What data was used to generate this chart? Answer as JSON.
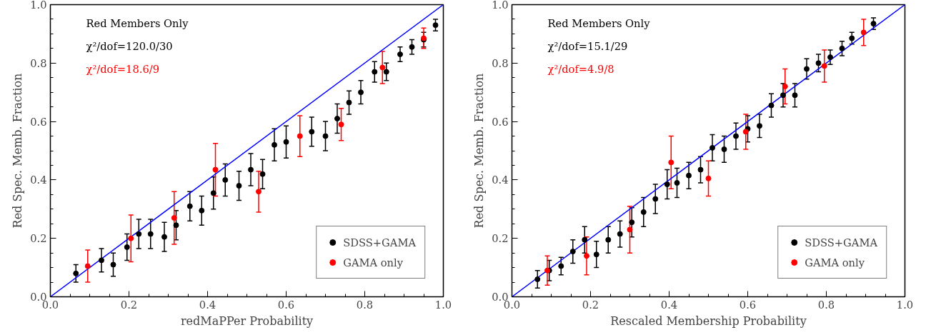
{
  "chart_data": [
    {
      "type": "scatter",
      "xlabel": "redMaPPer Probability",
      "ylabel": "Red Spec. Memb. Fraction",
      "xlim": [
        0,
        1
      ],
      "ylim": [
        0,
        1
      ],
      "xticks": [
        {
          "value": 0,
          "label": "0.0"
        },
        {
          "value": 0.2,
          "label": "0.2"
        },
        {
          "value": 0.4,
          "label": "0.4"
        },
        {
          "value": 0.6,
          "label": "0.6"
        },
        {
          "value": 0.8,
          "label": "0.8"
        },
        {
          "value": 1,
          "label": "1.0"
        }
      ],
      "yticks": [
        {
          "value": 0,
          "label": "0.0"
        },
        {
          "value": 0.2,
          "label": "0.2"
        },
        {
          "value": 0.4,
          "label": "0.4"
        },
        {
          "value": 0.6,
          "label": "0.6"
        },
        {
          "value": 0.8,
          "label": "0.8"
        },
        {
          "value": 1,
          "label": "1.0"
        }
      ],
      "grid": false,
      "legend": "bottom right",
      "marker": "circle",
      "annotations": [
        "Red Members Only",
        "χ²/dof=120.0/30",
        "χ²/dof=18.6/9"
      ],
      "series": [
        {
          "type": "line",
          "marker": "none",
          "color": "#0000ff",
          "x": [
            0,
            1
          ],
          "values": [
            0,
            1
          ]
        },
        {
          "name": "SDSS+GAMA",
          "color": "#000000",
          "x": [
            0.065,
            0.13,
            0.16,
            0.195,
            0.225,
            0.255,
            0.29,
            0.32,
            0.355,
            0.385,
            0.415,
            0.445,
            0.48,
            0.51,
            0.54,
            0.57,
            0.6,
            0.665,
            0.7,
            0.73,
            0.76,
            0.79,
            0.825,
            0.855,
            0.89,
            0.92,
            0.95,
            0.98
          ],
          "values": [
            0.08,
            0.125,
            0.11,
            0.17,
            0.215,
            0.215,
            0.205,
            0.245,
            0.31,
            0.295,
            0.355,
            0.4,
            0.38,
            0.435,
            0.42,
            0.52,
            0.53,
            0.565,
            0.55,
            0.61,
            0.665,
            0.7,
            0.77,
            0.77,
            0.83,
            0.855,
            0.88,
            0.93
          ],
          "errors": [
            0.03,
            0.04,
            0.04,
            0.045,
            0.05,
            0.05,
            0.05,
            0.05,
            0.05,
            0.05,
            0.055,
            0.055,
            0.05,
            0.055,
            0.05,
            0.055,
            0.055,
            0.05,
            0.05,
            0.05,
            0.04,
            0.04,
            0.035,
            0.03,
            0.025,
            0.025,
            0.025,
            0.02
          ]
        },
        {
          "name": "GAMA only",
          "color": "#ff0000",
          "x": [
            0.095,
            0.205,
            0.315,
            0.42,
            0.53,
            0.635,
            0.74,
            0.845,
            0.95
          ],
          "values": [
            0.105,
            0.2,
            0.27,
            0.435,
            0.36,
            0.55,
            0.59,
            0.785,
            0.885
          ],
          "errors": [
            0.055,
            0.08,
            0.09,
            0.09,
            0.07,
            0.07,
            0.055,
            0.055,
            0.035
          ]
        }
      ]
    },
    {
      "type": "scatter",
      "xlabel": "Rescaled Membership Probability",
      "ylabel": "Red Spec. Memb. Fraction",
      "xlim": [
        0,
        1
      ],
      "ylim": [
        0,
        1
      ],
      "xticks": [
        {
          "value": 0,
          "label": "0.0"
        },
        {
          "value": 0.2,
          "label": "0.2"
        },
        {
          "value": 0.4,
          "label": "0.4"
        },
        {
          "value": 0.6,
          "label": "0.6"
        },
        {
          "value": 0.8,
          "label": "0.8"
        },
        {
          "value": 1,
          "label": "1.0"
        }
      ],
      "yticks": [
        {
          "value": 0,
          "label": "0.0"
        },
        {
          "value": 0.2,
          "label": "0.2"
        },
        {
          "value": 0.4,
          "label": "0.4"
        },
        {
          "value": 0.6,
          "label": "0.6"
        },
        {
          "value": 0.8,
          "label": "0.8"
        },
        {
          "value": 1,
          "label": "1.0"
        }
      ],
      "grid": false,
      "legend": "bottom right",
      "marker": "circle",
      "annotations": [
        "Red Members Only",
        "χ²/dof=15.1/29",
        "χ²/dof=4.9/8"
      ],
      "series": [
        {
          "type": "line",
          "marker": "none",
          "color": "#0000ff",
          "x": [
            0,
            1
          ],
          "values": [
            0,
            1
          ]
        },
        {
          "name": "SDSS+GAMA",
          "color": "#000000",
          "x": [
            0.065,
            0.095,
            0.125,
            0.155,
            0.185,
            0.215,
            0.245,
            0.275,
            0.305,
            0.335,
            0.365,
            0.395,
            0.42,
            0.45,
            0.48,
            0.51,
            0.54,
            0.57,
            0.6,
            0.63,
            0.66,
            0.69,
            0.72,
            0.75,
            0.78,
            0.81,
            0.84,
            0.865,
            0.92
          ],
          "values": [
            0.06,
            0.09,
            0.105,
            0.155,
            0.195,
            0.145,
            0.195,
            0.215,
            0.255,
            0.29,
            0.335,
            0.385,
            0.39,
            0.415,
            0.435,
            0.51,
            0.505,
            0.55,
            0.575,
            0.585,
            0.655,
            0.69,
            0.69,
            0.78,
            0.8,
            0.82,
            0.85,
            0.885,
            0.935
          ],
          "errors": [
            0.03,
            0.035,
            0.03,
            0.04,
            0.045,
            0.045,
            0.045,
            0.045,
            0.05,
            0.05,
            0.05,
            0.05,
            0.05,
            0.045,
            0.045,
            0.045,
            0.045,
            0.045,
            0.045,
            0.04,
            0.04,
            0.04,
            0.04,
            0.035,
            0.03,
            0.025,
            0.025,
            0.02,
            0.02
          ]
        },
        {
          "name": "GAMA only",
          "color": "#ff0000",
          "x": [
            0.09,
            0.19,
            0.3,
            0.405,
            0.5,
            0.595,
            0.695,
            0.795,
            0.895
          ],
          "values": [
            0.09,
            0.14,
            0.23,
            0.46,
            0.405,
            0.565,
            0.72,
            0.79,
            0.905
          ],
          "errors": [
            0.05,
            0.065,
            0.08,
            0.09,
            0.06,
            0.06,
            0.06,
            0.055,
            0.045
          ]
        }
      ]
    }
  ]
}
